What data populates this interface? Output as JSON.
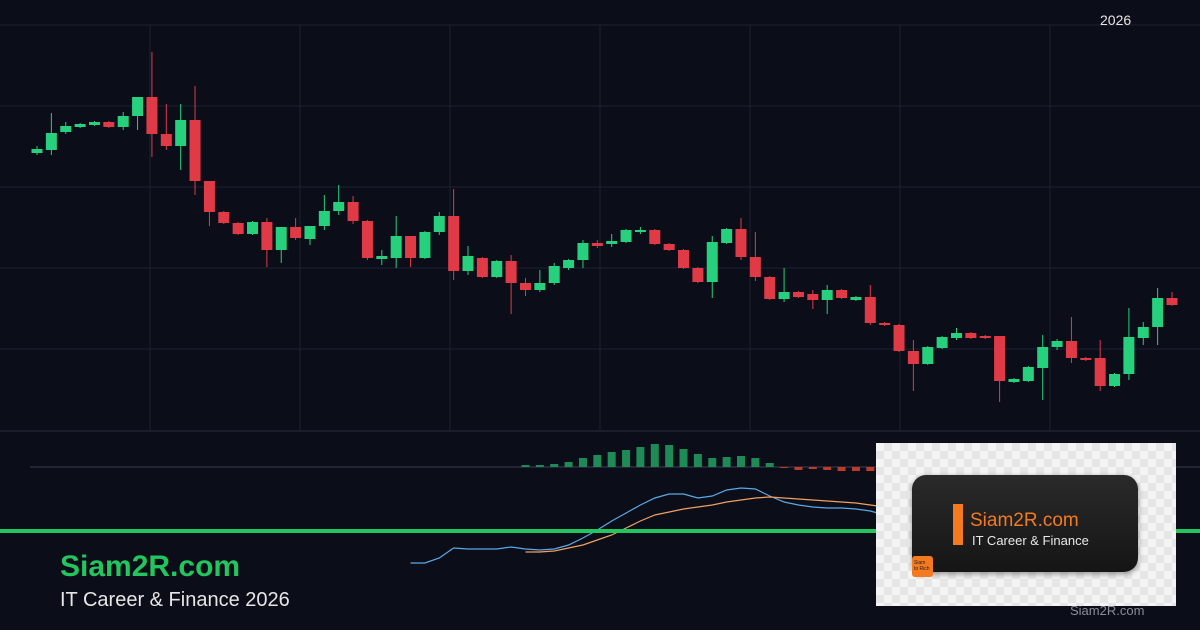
{
  "header": {
    "year": "2026"
  },
  "branding": {
    "title": "Siam2R.com",
    "subtitle": "IT Career & Finance 2026",
    "footer": "Siam2R.com"
  },
  "overlay": {
    "title": "Siam2R.com",
    "subtitle": "IT Career & Finance",
    "icon_text": [
      "Siam",
      "to Rich"
    ]
  },
  "chart_data": [
    {
      "type": "candlestick",
      "up_color": "#26d07c",
      "down_color": "#e03a47",
      "ylim": [
        0,
        430
      ],
      "open": [
        277,
        280,
        298,
        303,
        305,
        308,
        303,
        314,
        333,
        296,
        284,
        310,
        249,
        218,
        207,
        196,
        208,
        180,
        203,
        191,
        204,
        219,
        228,
        209,
        171,
        172,
        194,
        172,
        198,
        214,
        159,
        172,
        153,
        169,
        147,
        140,
        147,
        162,
        170,
        187,
        186,
        188,
        198,
        200,
        186,
        180,
        162,
        148,
        187,
        201,
        173,
        153,
        131,
        138,
        136,
        130,
        140,
        130,
        133,
        107,
        105,
        79,
        66,
        82,
        92,
        97,
        94,
        94,
        48,
        49,
        62,
        83,
        89,
        72,
        72,
        44,
        56,
        92,
        103,
        132
      ],
      "high": [
        284,
        317,
        308,
        307,
        309,
        309,
        318,
        333,
        378,
        326,
        326,
        344,
        249,
        219,
        208,
        209,
        212,
        203,
        212,
        204,
        235,
        245,
        234,
        210,
        180,
        214,
        194,
        199,
        218,
        241,
        184,
        173,
        170,
        175,
        152,
        160,
        167,
        171,
        190,
        190,
        196,
        201,
        203,
        201,
        187,
        181,
        163,
        194,
        202,
        212,
        198,
        154,
        162,
        139,
        140,
        145,
        141,
        134,
        145,
        108,
        106,
        90,
        84,
        94,
        102,
        98,
        95,
        94,
        52,
        64,
        95,
        91,
        113,
        73,
        90,
        57,
        122,
        108,
        142,
        138
      ],
      "low": [
        275,
        275,
        296,
        302,
        304,
        302,
        300,
        300,
        273,
        280,
        260,
        235,
        204,
        206,
        195,
        195,
        163,
        167,
        190,
        185,
        200,
        215,
        206,
        170,
        165,
        162,
        163,
        171,
        195,
        150,
        155,
        152,
        152,
        116,
        134,
        138,
        145,
        160,
        162,
        182,
        183,
        187,
        196,
        185,
        179,
        161,
        147,
        132,
        186,
        170,
        149,
        130,
        128,
        132,
        121,
        116,
        131,
        129,
        105,
        104,
        78,
        39,
        65,
        81,
        90,
        91,
        91,
        28,
        47,
        48,
        30,
        80,
        67,
        69,
        39,
        43,
        50,
        85,
        85,
        124
      ],
      "close": [
        281,
        297,
        304,
        306,
        308,
        303,
        314,
        333,
        296,
        284,
        310,
        249,
        218,
        207,
        196,
        208,
        180,
        203,
        192,
        204,
        219,
        228,
        209,
        172,
        174,
        194,
        172,
        198,
        214,
        159,
        174,
        153,
        169,
        147,
        140,
        147,
        164,
        170,
        187,
        184,
        189,
        200,
        200,
        186,
        180,
        162,
        148,
        188,
        201,
        173,
        153,
        131,
        138,
        133,
        130,
        140,
        132,
        133,
        107,
        105,
        79,
        66,
        83,
        93,
        97,
        92,
        92,
        49,
        51,
        63,
        83,
        89,
        72,
        70,
        44,
        56,
        93,
        103,
        132,
        125
      ]
    },
    {
      "type": "macd",
      "ylim": [
        -103,
        37
      ],
      "up_color": "#1e8a55",
      "down_color": "#c0392b",
      "histogram": [
        null,
        null,
        null,
        null,
        null,
        null,
        null,
        null,
        null,
        null,
        null,
        null,
        null,
        null,
        null,
        null,
        null,
        null,
        null,
        null,
        null,
        null,
        null,
        null,
        null,
        null,
        null,
        null,
        null,
        null,
        null,
        null,
        null,
        null,
        2,
        2,
        3,
        5,
        9,
        12,
        15,
        17,
        20,
        23,
        22,
        18,
        13,
        9,
        10,
        11,
        9,
        4,
        -1,
        -3,
        -2,
        -3,
        -4,
        -4,
        -4,
        -4,
        null,
        null,
        null,
        null,
        null,
        null,
        null,
        null,
        null,
        null,
        null,
        null,
        null,
        null,
        null,
        null,
        null,
        null,
        null,
        null
      ],
      "lines": [
        {
          "color": "#5aa9e6",
          "values": [
            null,
            null,
            null,
            null,
            null,
            null,
            null,
            null,
            null,
            null,
            null,
            null,
            null,
            null,
            null,
            null,
            null,
            null,
            null,
            null,
            null,
            null,
            null,
            null,
            null,
            null,
            -96,
            -96,
            -91,
            -81,
            -82,
            -82,
            -82,
            -80,
            -82,
            -83,
            -82,
            -78,
            -71,
            -63,
            -54,
            -46,
            -38,
            -31,
            -27,
            -27,
            -31,
            -29,
            -23,
            -21,
            -22,
            -29,
            -35,
            -38,
            -40,
            -41,
            -41,
            -42,
            -44,
            -48,
            null,
            null,
            null,
            null,
            null,
            null,
            null,
            null,
            null,
            null,
            null,
            null,
            null,
            null,
            null,
            null,
            null,
            null,
            null,
            null
          ]
        },
        {
          "color": "#f0a060",
          "values": [
            null,
            null,
            null,
            null,
            null,
            null,
            null,
            null,
            null,
            null,
            null,
            null,
            null,
            null,
            null,
            null,
            null,
            null,
            null,
            null,
            null,
            null,
            null,
            null,
            null,
            null,
            null,
            null,
            null,
            null,
            null,
            null,
            null,
            null,
            -85,
            -85,
            -84,
            -81,
            -78,
            -73,
            -68,
            -61,
            -54,
            -48,
            -45,
            -42,
            -40,
            -38,
            -35,
            -33,
            -31,
            -30,
            -31,
            -32,
            -33,
            -34,
            -35,
            -36,
            -38,
            -40,
            null,
            null,
            null,
            null,
            null,
            null,
            null,
            null,
            null,
            null,
            null,
            null,
            null,
            null,
            null,
            null,
            null,
            null,
            null,
            null
          ]
        }
      ]
    }
  ]
}
